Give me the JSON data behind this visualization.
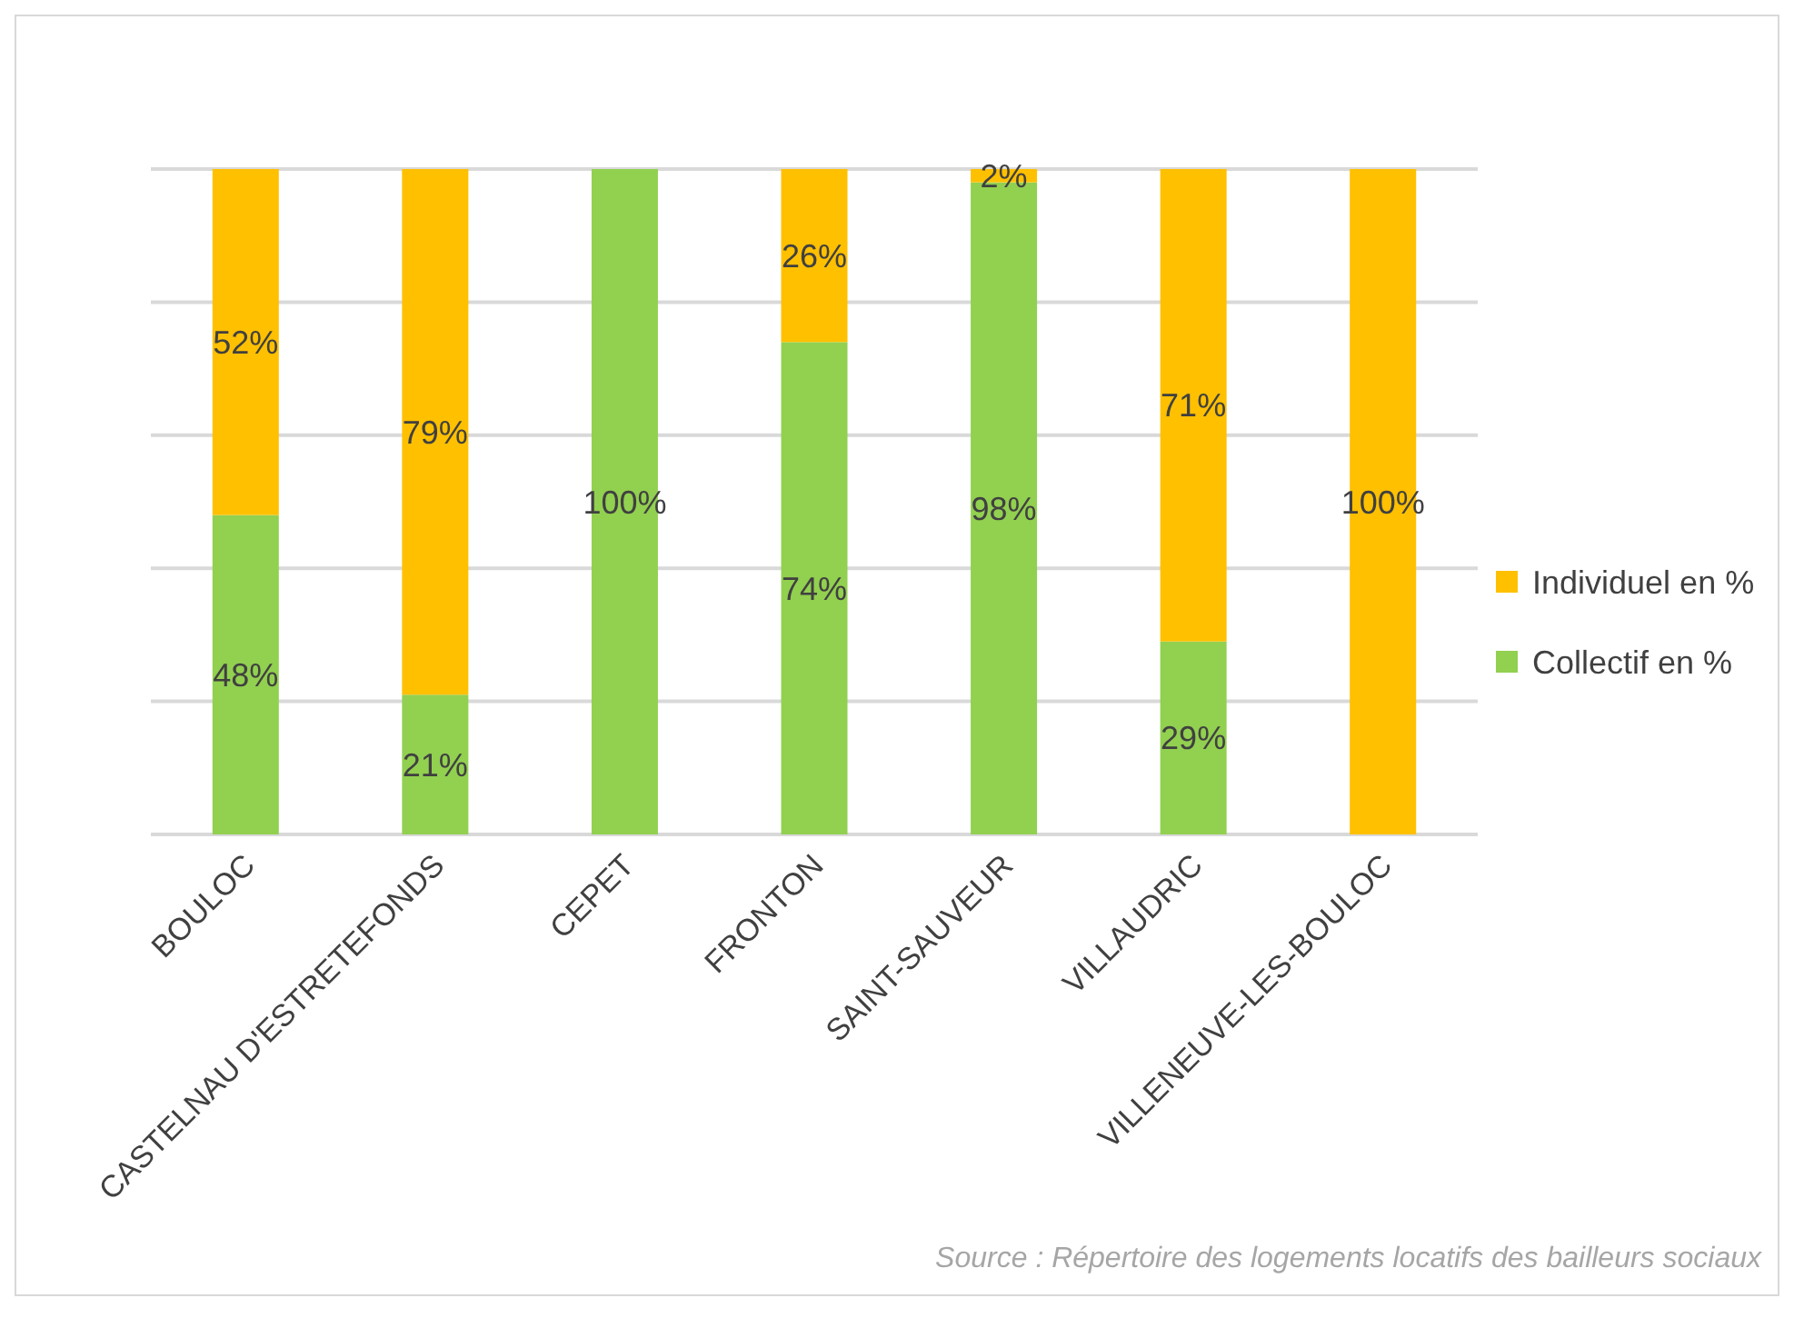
{
  "chart_data": {
    "type": "bar",
    "stacked": true,
    "categories": [
      "BOULOC",
      "CASTELNAU D'ESTRETEFONDS",
      "CEPET",
      "FRONTON",
      "SAINT-SAUVEUR",
      "VILLAUDRIC",
      "VILLENEUVE-LES-BOULOC"
    ],
    "series": [
      {
        "name": "Collectif en %",
        "color": "#92d050",
        "values": [
          48,
          21,
          100,
          74,
          98,
          29,
          0
        ],
        "value_labels": [
          "48%",
          "21%",
          "100%",
          "74%",
          "98%",
          "29%",
          null
        ]
      },
      {
        "name": "Individuel en %",
        "color": "#ffc000",
        "values": [
          52,
          79,
          0,
          26,
          2,
          71,
          100
        ],
        "value_labels": [
          "52%",
          "79%",
          null,
          "26%",
          "2%",
          "71%",
          "100%"
        ]
      }
    ],
    "ylim": [
      0,
      100
    ],
    "yticks": [
      {
        "value": 0,
        "label": null
      },
      {
        "value": 20,
        "label": null
      },
      {
        "value": 40,
        "label": null
      },
      {
        "value": 60,
        "label": null
      },
      {
        "value": 80,
        "label": null
      },
      {
        "value": 100,
        "label": null
      }
    ],
    "grid": "y",
    "tick_labels": "x",
    "legend": "right",
    "annotations": [
      "Source : Répertoire des logements locatifs des bailleurs sociaux"
    ]
  }
}
